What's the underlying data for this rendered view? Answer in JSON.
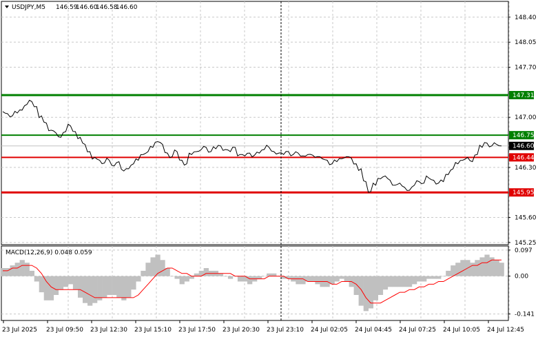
{
  "chart_data": [
    {
      "type": "line",
      "symbol": "USDJPY,M5",
      "ohlc": {
        "open": "146.59",
        "high": "146.60",
        "low": "146.58",
        "close": "146.60"
      },
      "ylim": [
        145.22,
        148.62
      ],
      "y_ticks": [
        "148.40",
        "148.05",
        "147.70",
        "147.00",
        "146.30",
        "145.60",
        "145.25"
      ],
      "x_ticks": [
        "23 Jul 2025",
        "23 Jul 09:50",
        "23 Jul 12:30",
        "23 Jul 15:10",
        "23 Jul 17:50",
        "23 Jul 20:30",
        "23 Jul 23:10",
        "24 Jul 02:05",
        "24 Jul 04:45",
        "24 Jul 07:25",
        "24 Jul 10:05",
        "24 Jul 12:45"
      ],
      "levels": [
        {
          "value": 147.31,
          "label": "147.31",
          "color": "#008000",
          "width": 3
        },
        {
          "value": 146.75,
          "label": "146.75",
          "color": "#008000",
          "width": 2
        },
        {
          "value": 146.44,
          "label": "146.44",
          "color": "#e00000",
          "width": 2
        },
        {
          "value": 145.95,
          "label": "145.95",
          "color": "#e00000",
          "width": 3
        }
      ],
      "current": {
        "value": 146.6,
        "label": "146.60",
        "color": "#000000"
      },
      "line_color": "#000000",
      "grid": true,
      "vline_at_tick": 6,
      "close": [
        147.08,
        147.05,
        147.02,
        147.06,
        147.1,
        147.18,
        147.22,
        147.15,
        147.02,
        146.92,
        146.82,
        146.78,
        146.72,
        146.8,
        146.88,
        146.8,
        146.72,
        146.62,
        146.52,
        146.44,
        146.4,
        146.36,
        146.4,
        146.32,
        146.38,
        146.25,
        146.28,
        146.35,
        146.4,
        146.48,
        146.52,
        146.58,
        146.66,
        146.62,
        146.5,
        146.45,
        146.52,
        146.4,
        146.35,
        146.48,
        146.52,
        146.55,
        146.58,
        146.52,
        146.56,
        146.6,
        146.55,
        146.52,
        146.58,
        146.48,
        146.46,
        146.5,
        146.47,
        146.5,
        146.55,
        146.58,
        146.52,
        146.5,
        146.48,
        146.52,
        146.48,
        146.5,
        146.46,
        146.48,
        146.47,
        146.45,
        146.42,
        146.4,
        146.35,
        146.38,
        146.42,
        146.45,
        146.43,
        146.35,
        146.28,
        146.1,
        145.96,
        146.05,
        146.14,
        146.18,
        146.12,
        146.05,
        146.08,
        146.02,
        145.98,
        146.05,
        146.1,
        146.08,
        146.15,
        146.12,
        146.08,
        146.1,
        146.2,
        146.28,
        146.35,
        146.4,
        146.44,
        146.38,
        146.48,
        146.58,
        146.64,
        146.6,
        146.62,
        146.6
      ]
    },
    {
      "type": "bar",
      "title": "MACD(12,26,9) 0.048 0.059",
      "ylim": [
        -0.165,
        0.112
      ],
      "y_ticks": [
        "0.097",
        "0.00",
        "-0.141"
      ],
      "bar_color": "#c0c0c0",
      "signal_color": "#ff0000",
      "histogram": [
        0.03,
        0.03,
        0.04,
        0.05,
        0.06,
        0.05,
        0.02,
        -0.02,
        -0.06,
        -0.09,
        -0.09,
        -0.07,
        -0.05,
        -0.04,
        -0.03,
        -0.05,
        -0.08,
        -0.1,
        -0.11,
        -0.1,
        -0.09,
        -0.08,
        -0.07,
        -0.07,
        -0.08,
        -0.09,
        -0.08,
        -0.05,
        -0.02,
        0.02,
        0.05,
        0.07,
        0.08,
        0.06,
        0.03,
        0.0,
        -0.01,
        -0.03,
        -0.02,
        -0.01,
        0.01,
        0.02,
        0.03,
        0.02,
        0.02,
        0.01,
        0.0,
        -0.01,
        0.0,
        -0.02,
        -0.02,
        -0.03,
        -0.02,
        -0.01,
        0.0,
        0.01,
        0.01,
        0.0,
        -0.01,
        -0.01,
        -0.02,
        -0.03,
        -0.03,
        -0.02,
        -0.02,
        -0.03,
        -0.04,
        -0.04,
        -0.03,
        -0.02,
        -0.01,
        -0.02,
        -0.04,
        -0.07,
        -0.11,
        -0.13,
        -0.12,
        -0.09,
        -0.07,
        -0.05,
        -0.04,
        -0.04,
        -0.04,
        -0.04,
        -0.04,
        -0.03,
        -0.02,
        -0.02,
        -0.01,
        -0.01,
        -0.01,
        0.0,
        0.02,
        0.04,
        0.05,
        0.06,
        0.06,
        0.05,
        0.06,
        0.07,
        0.08,
        0.07,
        0.06,
        0.05
      ],
      "signal": [
        0.02,
        0.02,
        0.03,
        0.03,
        0.04,
        0.04,
        0.04,
        0.03,
        0.01,
        -0.02,
        -0.04,
        -0.05,
        -0.05,
        -0.05,
        -0.05,
        -0.05,
        -0.05,
        -0.06,
        -0.07,
        -0.08,
        -0.08,
        -0.08,
        -0.08,
        -0.08,
        -0.08,
        -0.08,
        -0.08,
        -0.08,
        -0.07,
        -0.05,
        -0.03,
        -0.01,
        0.01,
        0.02,
        0.03,
        0.03,
        0.02,
        0.01,
        0.01,
        0.0,
        0.0,
        0.0,
        0.01,
        0.01,
        0.01,
        0.01,
        0.01,
        0.01,
        0.0,
        0.0,
        0.0,
        -0.01,
        -0.01,
        -0.01,
        -0.01,
        0.0,
        0.0,
        0.0,
        0.0,
        -0.01,
        -0.01,
        -0.01,
        -0.01,
        -0.02,
        -0.02,
        -0.02,
        -0.02,
        -0.02,
        -0.03,
        -0.03,
        -0.02,
        -0.02,
        -0.02,
        -0.03,
        -0.05,
        -0.08,
        -0.1,
        -0.1,
        -0.1,
        -0.09,
        -0.08,
        -0.07,
        -0.06,
        -0.06,
        -0.05,
        -0.05,
        -0.04,
        -0.04,
        -0.03,
        -0.03,
        -0.02,
        -0.02,
        -0.01,
        0.0,
        0.01,
        0.02,
        0.03,
        0.04,
        0.04,
        0.05,
        0.05,
        0.06,
        0.06,
        0.06
      ]
    }
  ]
}
